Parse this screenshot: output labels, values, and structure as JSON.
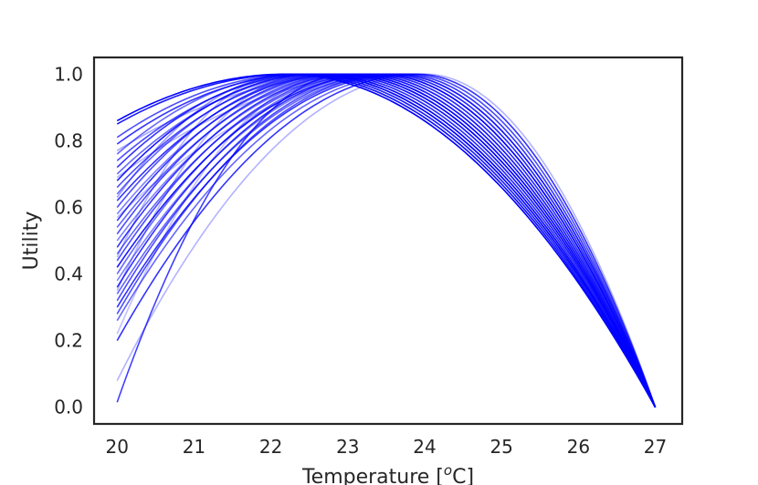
{
  "chart_data": {
    "type": "line",
    "title": "",
    "xlabel": "Temperature [",
    "xlabel_sup": "o",
    "xlabel_tail": "C]",
    "ylabel": "Utility",
    "xlim": [
      19.7,
      27.35
    ],
    "ylim": [
      -0.05,
      1.05
    ],
    "x_ticks": [
      20,
      21,
      22,
      23,
      24,
      25,
      26,
      27
    ],
    "x_tick_labels": [
      "20",
      "21",
      "22",
      "23",
      "24",
      "25",
      "26",
      "27"
    ],
    "y_ticks": [
      0.0,
      0.2,
      0.4,
      0.6,
      0.8,
      1.0
    ],
    "y_tick_labels": [
      "0.0",
      "0.2",
      "0.4",
      "0.6",
      "0.8",
      "1.0"
    ],
    "grid": false,
    "legend": "none",
    "line_color": "#0000ff",
    "curve_model": "quadratic rising from y at x=20 to a maximum of 1.0 at peak, then falling to 0.0 at x=27",
    "series": [
      {
        "start_x": 20,
        "start_y": 0.86,
        "peak_x": 22.2,
        "end_x": 27,
        "end_y": 0.0,
        "opacity": 1.0
      },
      {
        "start_x": 20,
        "start_y": 0.85,
        "peak_x": 22.3,
        "end_x": 27,
        "end_y": 0.0,
        "opacity": 0.9
      },
      {
        "start_x": 20,
        "start_y": 0.81,
        "peak_x": 22.4,
        "end_x": 27,
        "end_y": 0.0,
        "opacity": 0.7
      },
      {
        "start_x": 20,
        "start_y": 0.79,
        "peak_x": 22.5,
        "end_x": 27,
        "end_y": 0.0,
        "opacity": 0.8
      },
      {
        "start_x": 20,
        "start_y": 0.76,
        "peak_x": 22.4,
        "end_x": 27,
        "end_y": 0.0,
        "opacity": 0.6
      },
      {
        "start_x": 20,
        "start_y": 0.74,
        "peak_x": 22.6,
        "end_x": 27,
        "end_y": 0.0,
        "opacity": 0.7
      },
      {
        "start_x": 20,
        "start_y": 0.72,
        "peak_x": 22.5,
        "end_x": 27,
        "end_y": 0.0,
        "opacity": 0.8
      },
      {
        "start_x": 20,
        "start_y": 0.7,
        "peak_x": 22.7,
        "end_x": 27,
        "end_y": 0.0,
        "opacity": 0.6
      },
      {
        "start_x": 20,
        "start_y": 0.68,
        "peak_x": 22.6,
        "end_x": 27,
        "end_y": 0.0,
        "opacity": 0.9
      },
      {
        "start_x": 20,
        "start_y": 0.66,
        "peak_x": 22.8,
        "end_x": 27,
        "end_y": 0.0,
        "opacity": 0.7
      },
      {
        "start_x": 20,
        "start_y": 0.64,
        "peak_x": 22.7,
        "end_x": 27,
        "end_y": 0.0,
        "opacity": 0.6
      },
      {
        "start_x": 20,
        "start_y": 0.62,
        "peak_x": 22.9,
        "end_x": 27,
        "end_y": 0.0,
        "opacity": 0.8
      },
      {
        "start_x": 20,
        "start_y": 0.6,
        "peak_x": 22.8,
        "end_x": 27,
        "end_y": 0.0,
        "opacity": 0.7
      },
      {
        "start_x": 20,
        "start_y": 0.58,
        "peak_x": 23.0,
        "end_x": 27,
        "end_y": 0.0,
        "opacity": 0.5
      },
      {
        "start_x": 20,
        "start_y": 0.56,
        "peak_x": 22.9,
        "end_x": 27,
        "end_y": 0.0,
        "opacity": 0.8
      },
      {
        "start_x": 20,
        "start_y": 0.54,
        "peak_x": 23.1,
        "end_x": 27,
        "end_y": 0.0,
        "opacity": 0.6
      },
      {
        "start_x": 20,
        "start_y": 0.52,
        "peak_x": 23.0,
        "end_x": 27,
        "end_y": 0.0,
        "opacity": 0.7
      },
      {
        "start_x": 20,
        "start_y": 0.5,
        "peak_x": 23.2,
        "end_x": 27,
        "end_y": 0.0,
        "opacity": 0.5
      },
      {
        "start_x": 20,
        "start_y": 0.48,
        "peak_x": 23.1,
        "end_x": 27,
        "end_y": 0.0,
        "opacity": 0.8
      },
      {
        "start_x": 20,
        "start_y": 0.46,
        "peak_x": 23.3,
        "end_x": 27,
        "end_y": 0.0,
        "opacity": 0.6
      },
      {
        "start_x": 20,
        "start_y": 0.44,
        "peak_x": 23.2,
        "end_x": 27,
        "end_y": 0.0,
        "opacity": 0.7
      },
      {
        "start_x": 20,
        "start_y": 0.42,
        "peak_x": 23.4,
        "end_x": 27,
        "end_y": 0.0,
        "opacity": 0.9
      },
      {
        "start_x": 20,
        "start_y": 0.4,
        "peak_x": 23.3,
        "end_x": 27,
        "end_y": 0.0,
        "opacity": 0.6
      },
      {
        "start_x": 20,
        "start_y": 0.38,
        "peak_x": 23.5,
        "end_x": 27,
        "end_y": 0.0,
        "opacity": 0.5
      },
      {
        "start_x": 20,
        "start_y": 0.36,
        "peak_x": 23.4,
        "end_x": 27,
        "end_y": 0.0,
        "opacity": 0.8
      },
      {
        "start_x": 20,
        "start_y": 0.34,
        "peak_x": 23.6,
        "end_x": 27,
        "end_y": 0.0,
        "opacity": 0.6
      },
      {
        "start_x": 20,
        "start_y": 0.32,
        "peak_x": 23.5,
        "end_x": 27,
        "end_y": 0.0,
        "opacity": 0.7
      },
      {
        "start_x": 20,
        "start_y": 0.3,
        "peak_x": 23.7,
        "end_x": 27,
        "end_y": 0.0,
        "opacity": 0.8
      },
      {
        "start_x": 20,
        "start_y": 0.28,
        "peak_x": 23.6,
        "end_x": 27,
        "end_y": 0.0,
        "opacity": 0.7
      },
      {
        "start_x": 20,
        "start_y": 0.26,
        "peak_x": 23.8,
        "end_x": 27,
        "end_y": 0.0,
        "opacity": 0.6
      },
      {
        "start_x": 20,
        "start_y": 0.2,
        "peak_x": 23.9,
        "end_x": 27,
        "end_y": 0.0,
        "opacity": 0.8
      },
      {
        "start_x": 20,
        "start_y": 0.08,
        "peak_x": 24.0,
        "end_x": 27,
        "end_y": 0.0,
        "opacity": 0.3
      },
      {
        "start_x": 20,
        "start_y": 0.015,
        "peak_x": 23.0,
        "end_x": 27,
        "end_y": 0.0,
        "opacity": 0.75
      },
      {
        "start_x": 20,
        "start_y": 0.69,
        "peak_x": 23.6,
        "end_x": 27,
        "end_y": 0.0,
        "opacity": 0.3
      },
      {
        "start_x": 20,
        "start_y": 0.57,
        "peak_x": 23.8,
        "end_x": 27,
        "end_y": 0.0,
        "opacity": 0.25
      },
      {
        "start_x": 20,
        "start_y": 0.45,
        "peak_x": 22.2,
        "end_x": 27,
        "end_y": 0.0,
        "opacity": 0.3
      },
      {
        "start_x": 20,
        "start_y": 0.35,
        "peak_x": 22.5,
        "end_x": 27,
        "end_y": 0.0,
        "opacity": 0.3
      },
      {
        "start_x": 20,
        "start_y": 0.22,
        "peak_x": 22.9,
        "end_x": 27,
        "end_y": 0.0,
        "opacity": 0.25
      },
      {
        "start_x": 20,
        "start_y": 0.77,
        "peak_x": 23.2,
        "end_x": 27,
        "end_y": 0.0,
        "opacity": 0.35
      },
      {
        "start_x": 20,
        "start_y": 0.63,
        "peak_x": 22.3,
        "end_x": 27,
        "end_y": 0.0,
        "opacity": 0.4
      }
    ]
  }
}
